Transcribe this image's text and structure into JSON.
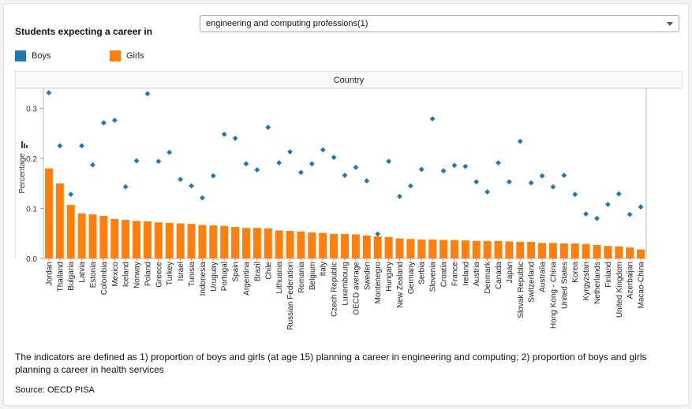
{
  "filter": {
    "label": "Students expecting a career in",
    "selected": "engineering and computing professions(1)"
  },
  "colors": {
    "boys": "#1f77b4",
    "girls": "#ff7f0e"
  },
  "legend": [
    {
      "name": "Boys",
      "color": "#1f77b4"
    },
    {
      "name": "Girls",
      "color": "#ff7f0e"
    }
  ],
  "chart_data": {
    "type": "bar",
    "title": "Country",
    "xlabel": "",
    "ylabel": "Percentage",
    "ylim": [
      0,
      0.34
    ],
    "yticks": [
      "0.0",
      "0.1",
      "0.2",
      "0.3"
    ],
    "grid": false,
    "categories": [
      "Jordan",
      "Thailand",
      "Bulgaria",
      "Latvia",
      "Estonia",
      "Colombia",
      "Mexico",
      "Iceland",
      "Norway",
      "Poland",
      "Greece",
      "Turkey",
      "Israel",
      "Tunisia",
      "Indonesia",
      "Uruguay",
      "Portugal",
      "Spain",
      "Argentina",
      "Brazil",
      "Chile",
      "Lithuania",
      "Russian Federation",
      "Romania",
      "Belgium",
      "Italy",
      "Czech Republic",
      "Luxembourg",
      "OECD average",
      "Sweden",
      "Montenegro",
      "Hungary",
      "New Zealand",
      "Germany",
      "Serbia",
      "Slovenia",
      "Croatia",
      "France",
      "Ireland",
      "Austria",
      "Denmark",
      "Canada",
      "Japan",
      "Slovak Republic",
      "Switzerland",
      "Australia",
      "Hong Kong - China",
      "United States",
      "Korea",
      "Kyrgyzstan",
      "Netherlands",
      "Finland",
      "United Kingdom",
      "Azerbaijan",
      "Macao-China"
    ],
    "series": [
      {
        "name": "Girls",
        "marker": "bar",
        "values": [
          0.18,
          0.15,
          0.107,
          0.09,
          0.088,
          0.085,
          0.079,
          0.077,
          0.075,
          0.074,
          0.072,
          0.071,
          0.07,
          0.069,
          0.067,
          0.066,
          0.065,
          0.063,
          0.061,
          0.061,
          0.06,
          0.056,
          0.055,
          0.054,
          0.052,
          0.051,
          0.049,
          0.049,
          0.048,
          0.046,
          0.044,
          0.043,
          0.04,
          0.039,
          0.038,
          0.038,
          0.037,
          0.037,
          0.036,
          0.035,
          0.035,
          0.035,
          0.034,
          0.033,
          0.033,
          0.031,
          0.031,
          0.03,
          0.03,
          0.029,
          0.027,
          0.025,
          0.024,
          0.022,
          0.018
        ]
      },
      {
        "name": "Boys",
        "marker": "diamond",
        "values": [
          0.331,
          0.225,
          0.128,
          0.225,
          0.187,
          0.271,
          0.276,
          0.143,
          0.195,
          0.329,
          0.194,
          0.212,
          0.158,
          0.145,
          0.121,
          0.165,
          0.248,
          0.24,
          0.189,
          0.177,
          0.262,
          0.191,
          0.213,
          0.172,
          0.189,
          0.217,
          0.202,
          0.166,
          0.182,
          0.155,
          0.049,
          0.194,
          0.124,
          0.145,
          0.178,
          0.279,
          0.175,
          0.186,
          0.184,
          0.153,
          0.133,
          0.191,
          0.153,
          0.234,
          0.151,
          0.165,
          0.143,
          0.166,
          0.128,
          0.089,
          0.08,
          0.108,
          0.129,
          0.088,
          0.103
        ]
      }
    ]
  },
  "footnote": "The indicators are defined as 1) proportion of boys and girls (at age 15) planning a career in engineering and computing; 2) proportion of boys and girls planning a career in health services",
  "source": "Source: OECD PISA",
  "icons": {
    "chart_type": "bar-chart-icon",
    "dropdown": "chevron-down-icon"
  }
}
